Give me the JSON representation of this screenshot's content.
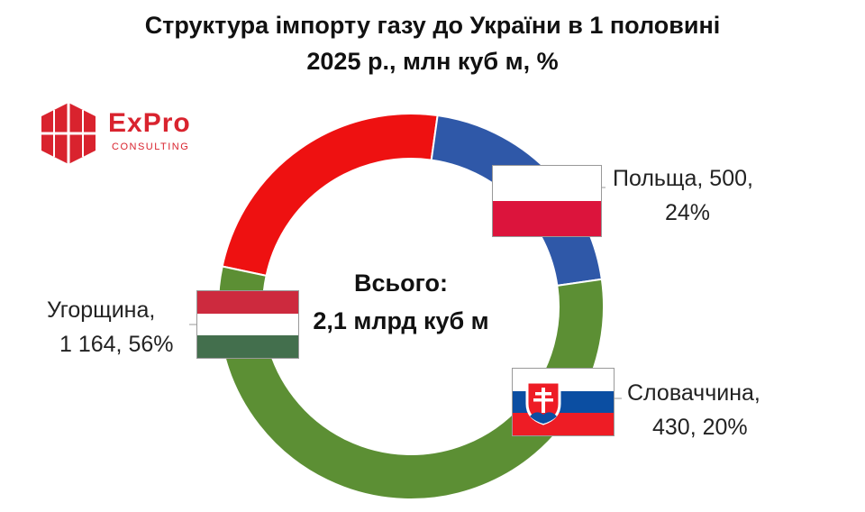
{
  "title_line1": "Структура імпорту газу до України в 1 половині",
  "title_line2": "2025 р., млн куб м, %",
  "logo": {
    "name": "ExPro",
    "sub": "CONSULTING"
  },
  "center": {
    "line1": "Всього:",
    "line2": "2,1 млрд куб м"
  },
  "labels": {
    "poland": {
      "line1": "Польща, 500,",
      "line2": "24%"
    },
    "hungary": {
      "line1": "Угорщина,",
      "line2": "1 164, 56%"
    },
    "slovakia": {
      "line1": "Словаччина,",
      "line2": "430, 20%"
    }
  },
  "chart_data": {
    "type": "pie",
    "subtype": "donut",
    "title": "Структура імпорту газу до України в 1 половині 2025 р., млн куб м, %",
    "center_label": "Всього: 2,1 млрд куб м",
    "categories": [
      "Польща",
      "Словаччина",
      "Угорщина"
    ],
    "values": [
      500,
      430,
      1164
    ],
    "percent": [
      24,
      20,
      56
    ],
    "unit": "млн куб м",
    "colors": [
      "#ee1111",
      "#2f58a8",
      "#5c8f34"
    ]
  }
}
